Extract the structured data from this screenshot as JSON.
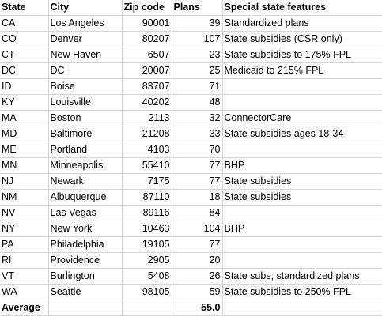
{
  "headers": [
    "State",
    "City",
    "Zip code",
    "Plans",
    "Special state features"
  ],
  "rows": [
    [
      "CA",
      "Los Angeles",
      "90001",
      "39",
      "Standardized plans"
    ],
    [
      "CO",
      "Denver",
      "80207",
      "107",
      "State subsidies (CSR only)"
    ],
    [
      "CT",
      "New Haven",
      "6507",
      "23",
      "State subsidies to 175% FPL"
    ],
    [
      "DC",
      "DC",
      "20007",
      "25",
      "Medicaid to 215% FPL"
    ],
    [
      "ID",
      "Boise",
      "83707",
      "71",
      ""
    ],
    [
      "KY",
      "Louisville",
      "40202",
      "48",
      ""
    ],
    [
      "MA",
      "Boston",
      "2113",
      "32",
      "ConnectorCare"
    ],
    [
      "MD",
      "Baltimore",
      "21208",
      "33",
      "State subsidies ages 18-34"
    ],
    [
      "ME",
      "Portland",
      "4103",
      "70",
      ""
    ],
    [
      "MN",
      "Minneapolis",
      "55410",
      "77",
      "BHP"
    ],
    [
      "NJ",
      "Newark",
      "7175",
      "77",
      "State subsidies"
    ],
    [
      "NM",
      "Albuquerque",
      "87110",
      "18",
      "State subsidies"
    ],
    [
      "NV",
      "Las Vegas",
      "89116",
      "84",
      ""
    ],
    [
      "NY",
      "New York",
      "10463",
      "104",
      "BHP"
    ],
    [
      "PA",
      "Philadelphia",
      "19105",
      "77",
      ""
    ],
    [
      "RI",
      "Providence",
      "2905",
      "20",
      ""
    ],
    [
      "VT",
      "Burlington",
      "5408",
      "26",
      "State subs; standardized plans"
    ],
    [
      "WA",
      "Seattle",
      "98105",
      "59",
      "State subsidies to 250% FPL"
    ]
  ],
  "average": {
    "label": "Average",
    "value": "55.0"
  }
}
